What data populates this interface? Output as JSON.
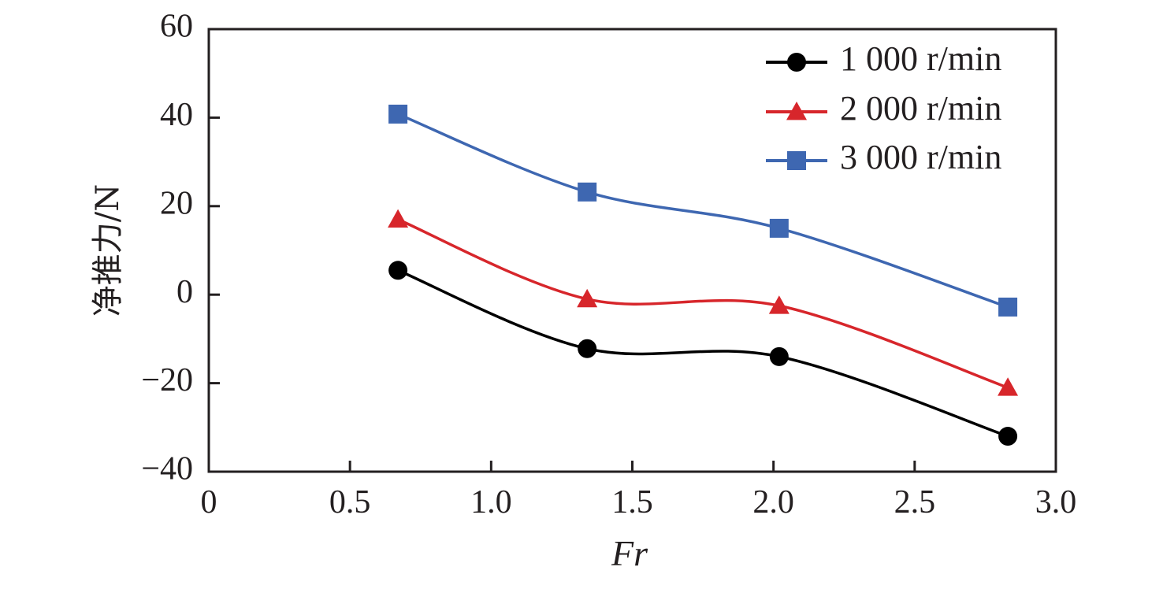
{
  "chart_data": {
    "type": "line",
    "title": "",
    "xlabel": "Fr",
    "ylabel": "净推力/N",
    "xlim": [
      0,
      3.0
    ],
    "ylim": [
      -40,
      60
    ],
    "x_ticks": [
      "0",
      "0.5",
      "1.0",
      "1.5",
      "2.0",
      "2.5",
      "3.0"
    ],
    "y_ticks": [
      "60",
      "40",
      "20",
      "0",
      "−20",
      "−40"
    ],
    "grid": false,
    "legend_position": "top-right",
    "series": [
      {
        "name": "1 000 r/min",
        "color": "#000000",
        "marker": "circle",
        "x": [
          0.67,
          1.34,
          2.02,
          2.83
        ],
        "y": [
          5.5,
          -12.2,
          -14.0,
          -32.0
        ]
      },
      {
        "name": "2 000 r/min",
        "color": "#d7262b",
        "marker": "triangle",
        "x": [
          0.67,
          1.34,
          2.02,
          2.83
        ],
        "y": [
          17.0,
          -1.0,
          -2.5,
          -21.0
        ]
      },
      {
        "name": "3 000 r/min",
        "color": "#3e67b1",
        "marker": "square",
        "x": [
          0.67,
          1.34,
          2.02,
          2.83
        ],
        "y": [
          40.8,
          23.2,
          15.0,
          -2.8
        ]
      }
    ]
  }
}
